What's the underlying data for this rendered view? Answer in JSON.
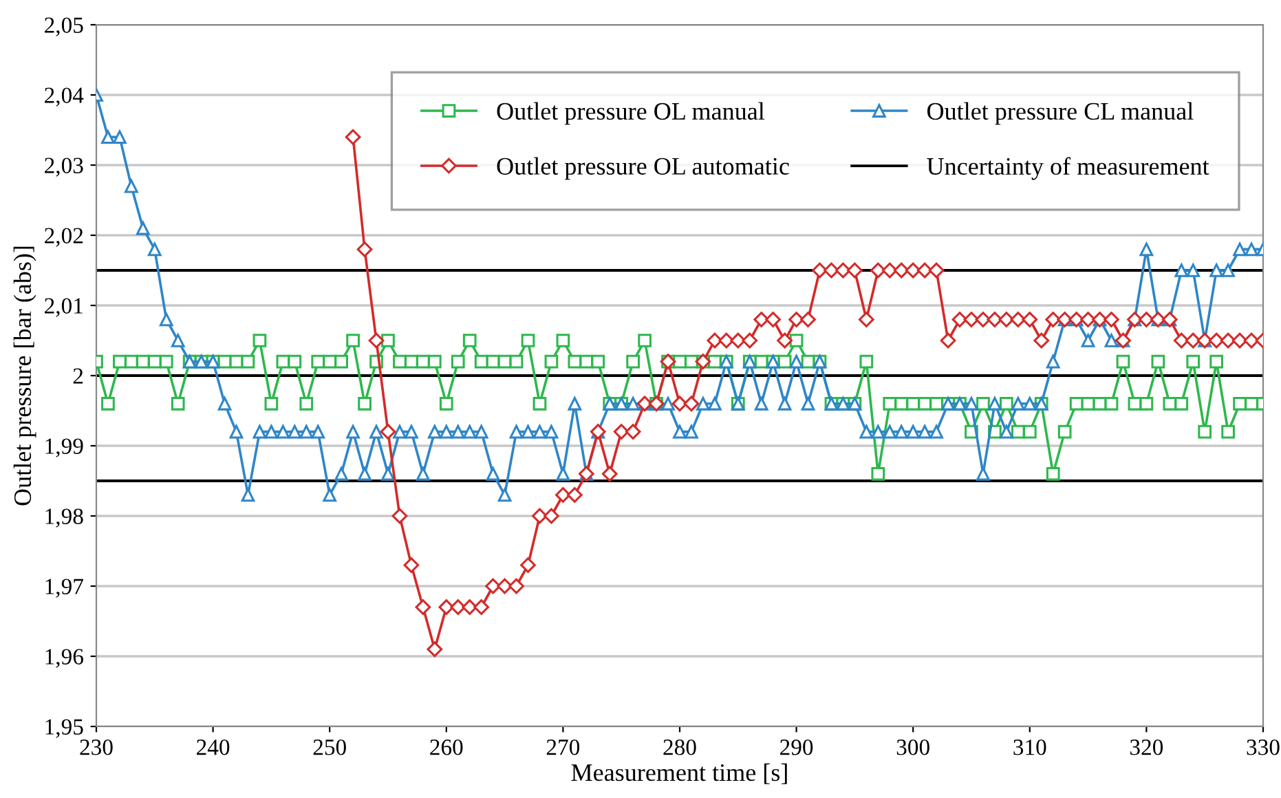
{
  "chart_data": {
    "type": "line",
    "xlabel": "Measurement time [s]",
    "ylabel": "Outlet pressure [bar (abs)]",
    "x": [
      230,
      231,
      232,
      233,
      234,
      235,
      236,
      237,
      238,
      239,
      240,
      241,
      242,
      243,
      244,
      245,
      246,
      247,
      248,
      249,
      250,
      251,
      252,
      253,
      254,
      255,
      256,
      257,
      258,
      259,
      260,
      261,
      262,
      263,
      264,
      265,
      266,
      267,
      268,
      269,
      270,
      271,
      272,
      273,
      274,
      275,
      276,
      277,
      278,
      279,
      280,
      281,
      282,
      283,
      284,
      285,
      286,
      287,
      288,
      289,
      290,
      291,
      292,
      293,
      294,
      295,
      296,
      297,
      298,
      299,
      300,
      301,
      302,
      303,
      304,
      305,
      306,
      307,
      308,
      309,
      310,
      311,
      312,
      313,
      314,
      315,
      316,
      317,
      318,
      319,
      320,
      321,
      322,
      323,
      324,
      325,
      326,
      327,
      328,
      329,
      330
    ],
    "series": [
      {
        "name": "Outlet pressure OL manual",
        "color": "#2db84d",
        "marker": "square",
        "values": [
          2.002,
          1.996,
          2.002,
          2.002,
          2.002,
          2.002,
          2.002,
          1.996,
          2.002,
          2.002,
          2.002,
          2.002,
          2.002,
          2.002,
          2.005,
          1.996,
          2.002,
          2.002,
          1.996,
          2.002,
          2.002,
          2.002,
          2.005,
          1.996,
          2.002,
          2.005,
          2.002,
          2.002,
          2.002,
          2.002,
          1.996,
          2.002,
          2.005,
          2.002,
          2.002,
          2.002,
          2.002,
          2.005,
          1.996,
          2.002,
          2.005,
          2.002,
          2.002,
          2.002,
          1.996,
          1.996,
          2.002,
          2.005,
          1.996,
          2.002,
          2.002,
          2.002,
          2.002,
          2.002,
          2.002,
          1.996,
          2.002,
          2.002,
          2.002,
          2.002,
          2.005,
          2.002,
          2.002,
          1.996,
          1.996,
          1.996,
          2.002,
          1.986,
          1.996,
          1.996,
          1.996,
          1.996,
          1.996,
          1.996,
          1.996,
          1.992,
          1.996,
          1.992,
          1.996,
          1.992,
          1.992,
          1.996,
          1.986,
          1.992,
          1.996,
          1.996,
          1.996,
          1.996,
          2.002,
          1.996,
          1.996,
          2.002,
          1.996,
          1.996,
          2.002,
          1.992,
          2.002,
          1.992,
          1.996,
          1.996,
          1.996
        ]
      },
      {
        "name": "Outlet pressure CL manual",
        "color": "#2e86c9",
        "marker": "triangle",
        "values": [
          2.04,
          2.034,
          2.034,
          2.027,
          2.021,
          2.018,
          2.008,
          2.005,
          2.002,
          2.002,
          2.002,
          1.996,
          1.992,
          1.983,
          1.992,
          1.992,
          1.992,
          1.992,
          1.992,
          1.992,
          1.983,
          1.986,
          1.992,
          1.986,
          1.992,
          1.986,
          1.992,
          1.992,
          1.986,
          1.992,
          1.992,
          1.992,
          1.992,
          1.992,
          1.986,
          1.983,
          1.992,
          1.992,
          1.992,
          1.992,
          1.986,
          1.996,
          1.986,
          1.992,
          1.996,
          1.996,
          1.996,
          1.996,
          1.996,
          1.996,
          1.992,
          1.992,
          1.996,
          1.996,
          2.002,
          1.996,
          2.002,
          1.996,
          2.002,
          1.996,
          2.002,
          1.996,
          2.002,
          1.996,
          1.996,
          1.996,
          1.992,
          1.992,
          1.992,
          1.992,
          1.992,
          1.992,
          1.992,
          1.996,
          1.996,
          1.996,
          1.986,
          1.996,
          1.992,
          1.996,
          1.996,
          1.996,
          2.002,
          2.008,
          2.008,
          2.005,
          2.008,
          2.005,
          2.005,
          2.008,
          2.018,
          2.008,
          2.008,
          2.015,
          2.015,
          2.005,
          2.015,
          2.015,
          2.018,
          2.018,
          2.018
        ]
      },
      {
        "name": "Outlet pressure OL automatic",
        "color": "#d42a2a",
        "marker": "diamond",
        "values": [
          null,
          null,
          null,
          null,
          null,
          null,
          null,
          null,
          null,
          null,
          null,
          null,
          null,
          null,
          null,
          null,
          null,
          null,
          null,
          null,
          null,
          null,
          2.034,
          2.018,
          2.005,
          1.992,
          1.98,
          1.973,
          1.967,
          1.961,
          1.967,
          1.967,
          1.967,
          1.967,
          1.97,
          1.97,
          1.97,
          1.973,
          1.98,
          1.98,
          1.983,
          1.983,
          1.986,
          1.992,
          1.986,
          1.992,
          1.992,
          1.996,
          1.996,
          2.002,
          1.996,
          1.996,
          2.002,
          2.005,
          2.005,
          2.005,
          2.005,
          2.008,
          2.008,
          2.005,
          2.008,
          2.008,
          2.015,
          2.015,
          2.015,
          2.015,
          2.008,
          2.015,
          2.015,
          2.015,
          2.015,
          2.015,
          2.015,
          2.005,
          2.008,
          2.008,
          2.008,
          2.008,
          2.008,
          2.008,
          2.008,
          2.005,
          2.008,
          2.008,
          2.008,
          2.008,
          2.008,
          2.008,
          2.005,
          2.008,
          2.008,
          2.008,
          2.008,
          2.005,
          2.005,
          2.005,
          2.005,
          2.005,
          2.005,
          2.005,
          2.005
        ]
      }
    ],
    "ref_lines": [
      {
        "axis": "y",
        "value": 2.015,
        "label": "Uncertainty of measurement",
        "color": "#000000"
      },
      {
        "axis": "y",
        "value": 2.0,
        "color": "#000000"
      },
      {
        "axis": "y",
        "value": 1.985,
        "color": "#000000"
      }
    ],
    "xlim": [
      230,
      330
    ],
    "xticks": [
      230,
      240,
      250,
      260,
      270,
      280,
      290,
      300,
      310,
      320,
      330
    ],
    "ylim": [
      1.95,
      2.05
    ],
    "yticks": [
      {
        "value": 1.95,
        "label": "1,95"
      },
      {
        "value": 1.96,
        "label": "1,96"
      },
      {
        "value": 1.97,
        "label": "1,97"
      },
      {
        "value": 1.98,
        "label": "1,98"
      },
      {
        "value": 1.99,
        "label": "1,99"
      },
      {
        "value": 2.0,
        "label": "2"
      },
      {
        "value": 2.01,
        "label": "2,01"
      },
      {
        "value": 2.02,
        "label": "2,02"
      },
      {
        "value": 2.03,
        "label": "2,03"
      },
      {
        "value": 2.04,
        "label": "2,04"
      },
      {
        "value": 2.05,
        "label": "2,05"
      }
    ],
    "grid": "y",
    "legend": "top right",
    "line_style": "solid"
  }
}
